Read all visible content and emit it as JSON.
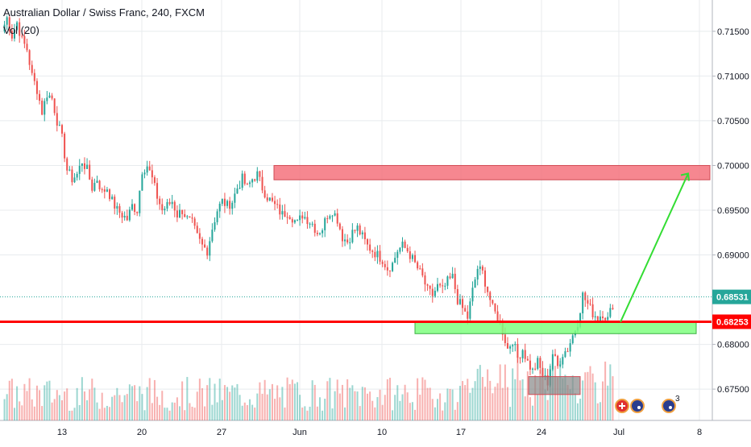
{
  "chart_data": {
    "type": "candlestick",
    "title": "Australian Dollar / Swiss Franc, 240, FXCM",
    "volume_indicator": "Vol (20)",
    "y_axis": {
      "ticks": [
        "0.71500",
        "0.71000",
        "0.70500",
        "0.70000",
        "0.69500",
        "0.69000",
        "0.68000",
        "0.67500"
      ],
      "tick_values": [
        0.715,
        0.71,
        0.705,
        0.7,
        0.695,
        0.69,
        0.68,
        0.675
      ],
      "range": [
        0.6715,
        0.7185
      ]
    },
    "x_axis": {
      "ticks": [
        "13",
        "20",
        "27",
        "Jun",
        "10",
        "17",
        "24",
        "Jul",
        "8"
      ]
    },
    "current_price": {
      "label": "0.68531",
      "value": 0.68531
    },
    "horizontal_level": {
      "label": "0.68253",
      "value": 0.68253,
      "color": "#ff0000"
    },
    "zones": [
      {
        "name": "resistance-zone",
        "y_top": 0.7,
        "y_bottom": 0.6984,
        "color": "#f4727c"
      },
      {
        "name": "support-zone",
        "y_top": 0.6825,
        "y_bottom": 0.6812,
        "color": "#7fff7f"
      },
      {
        "name": "volume-zone",
        "y_top": 0.6764,
        "y_bottom": 0.6744,
        "color": "#888888"
      }
    ],
    "projection_arrow": {
      "from_price": 0.6825,
      "to_price": 0.6991,
      "color": "#33dd33"
    },
    "colors": {
      "up": "#26a69a",
      "down": "#ef5350",
      "grid": "#e8ebee",
      "axis_text": "#131722"
    },
    "price_path": [
      0.715,
      0.7165,
      0.7145,
      0.716,
      0.714,
      0.713,
      0.71,
      0.7085,
      0.706,
      0.708,
      0.7075,
      0.705,
      0.703,
      0.6995,
      0.6985,
      0.699,
      0.7005,
      0.6995,
      0.6975,
      0.6985,
      0.697,
      0.6975,
      0.696,
      0.695,
      0.6945,
      0.694,
      0.6955,
      0.695,
      0.6995,
      0.7,
      0.6985,
      0.6965,
      0.695,
      0.6955,
      0.696,
      0.6945,
      0.695,
      0.694,
      0.6935,
      0.692,
      0.691,
      0.6905,
      0.693,
      0.695,
      0.696,
      0.6955,
      0.696,
      0.6975,
      0.6985,
      0.6975,
      0.6985,
      0.699,
      0.6975,
      0.6965,
      0.6958,
      0.6952,
      0.6945,
      0.6948,
      0.6942,
      0.6935,
      0.6945,
      0.694,
      0.6935,
      0.6925,
      0.693,
      0.6945,
      0.695,
      0.694,
      0.692,
      0.6915,
      0.6925,
      0.693,
      0.692,
      0.691,
      0.6905,
      0.69,
      0.6895,
      0.6885,
      0.689,
      0.6905,
      0.691,
      0.6905,
      0.6895,
      0.6885,
      0.6875,
      0.686,
      0.6855,
      0.6865,
      0.686,
      0.687,
      0.6875,
      0.685,
      0.684,
      0.683,
      0.686,
      0.6885,
      0.688,
      0.686,
      0.684,
      0.683,
      0.6815,
      0.6795,
      0.6805,
      0.6785,
      0.6795,
      0.678,
      0.677,
      0.678,
      0.6765,
      0.6758,
      0.679,
      0.6775,
      0.679,
      0.6795,
      0.681,
      0.6825,
      0.6855,
      0.6845,
      0.6835,
      0.683,
      0.6835,
      0.6828,
      0.6845
    ]
  },
  "ui": {
    "currency_icons": [
      "swiss-flag-icon",
      "australia-flag-icon",
      "australia-flag-icon"
    ],
    "event_count": "3"
  }
}
